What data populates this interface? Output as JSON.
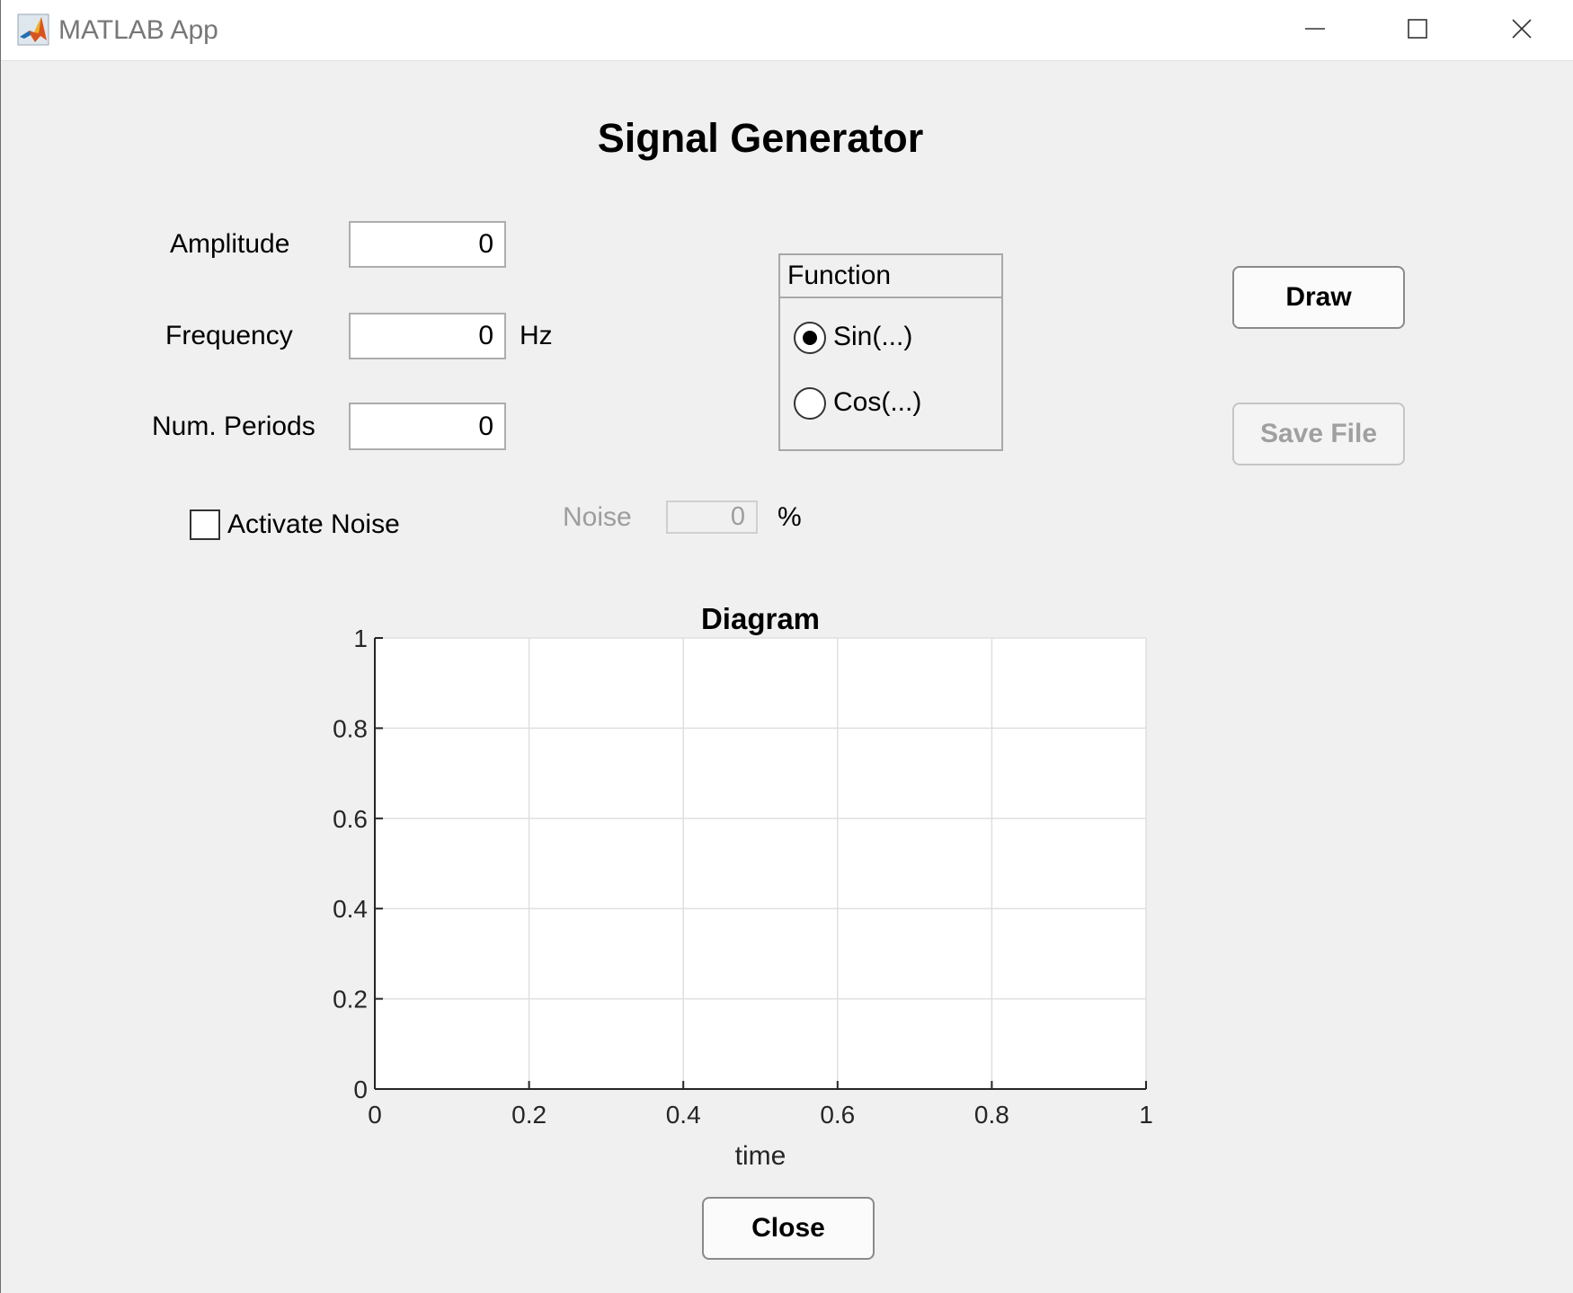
{
  "window": {
    "title": "MATLAB App"
  },
  "heading": "Signal Generator",
  "fields": {
    "amplitude": {
      "label": "Amplitude",
      "value": "0"
    },
    "frequency": {
      "label": "Frequency",
      "value": "0",
      "unit": "Hz"
    },
    "periods": {
      "label": "Num. Periods",
      "value": "0"
    }
  },
  "function_group": {
    "title": "Function",
    "options": [
      {
        "label": "Sin(...)",
        "selected": true
      },
      {
        "label": "Cos(...)",
        "selected": false
      }
    ]
  },
  "buttons": {
    "draw": "Draw",
    "save": "Save File",
    "save_enabled": false,
    "close": "Close"
  },
  "noise": {
    "checkbox_label": "Activate Noise",
    "checked": false,
    "label": "Noise",
    "value": "0",
    "unit": "%",
    "enabled": false
  },
  "chart_data": {
    "type": "line",
    "title": "Diagram",
    "xlabel": "time",
    "ylabel": "",
    "xlim": [
      0,
      1
    ],
    "ylim": [
      0,
      1
    ],
    "xticks": [
      "0",
      "0.2",
      "0.4",
      "0.6",
      "0.8",
      "1"
    ],
    "yticks": [
      "0",
      "0.2",
      "0.4",
      "0.6",
      "0.8",
      "1"
    ],
    "grid": true,
    "series": []
  },
  "colors": {
    "axes_background": "#ffffff",
    "figure_background": "#f0f0f0",
    "grid": "#dfdfdf",
    "axis": "#262626"
  }
}
